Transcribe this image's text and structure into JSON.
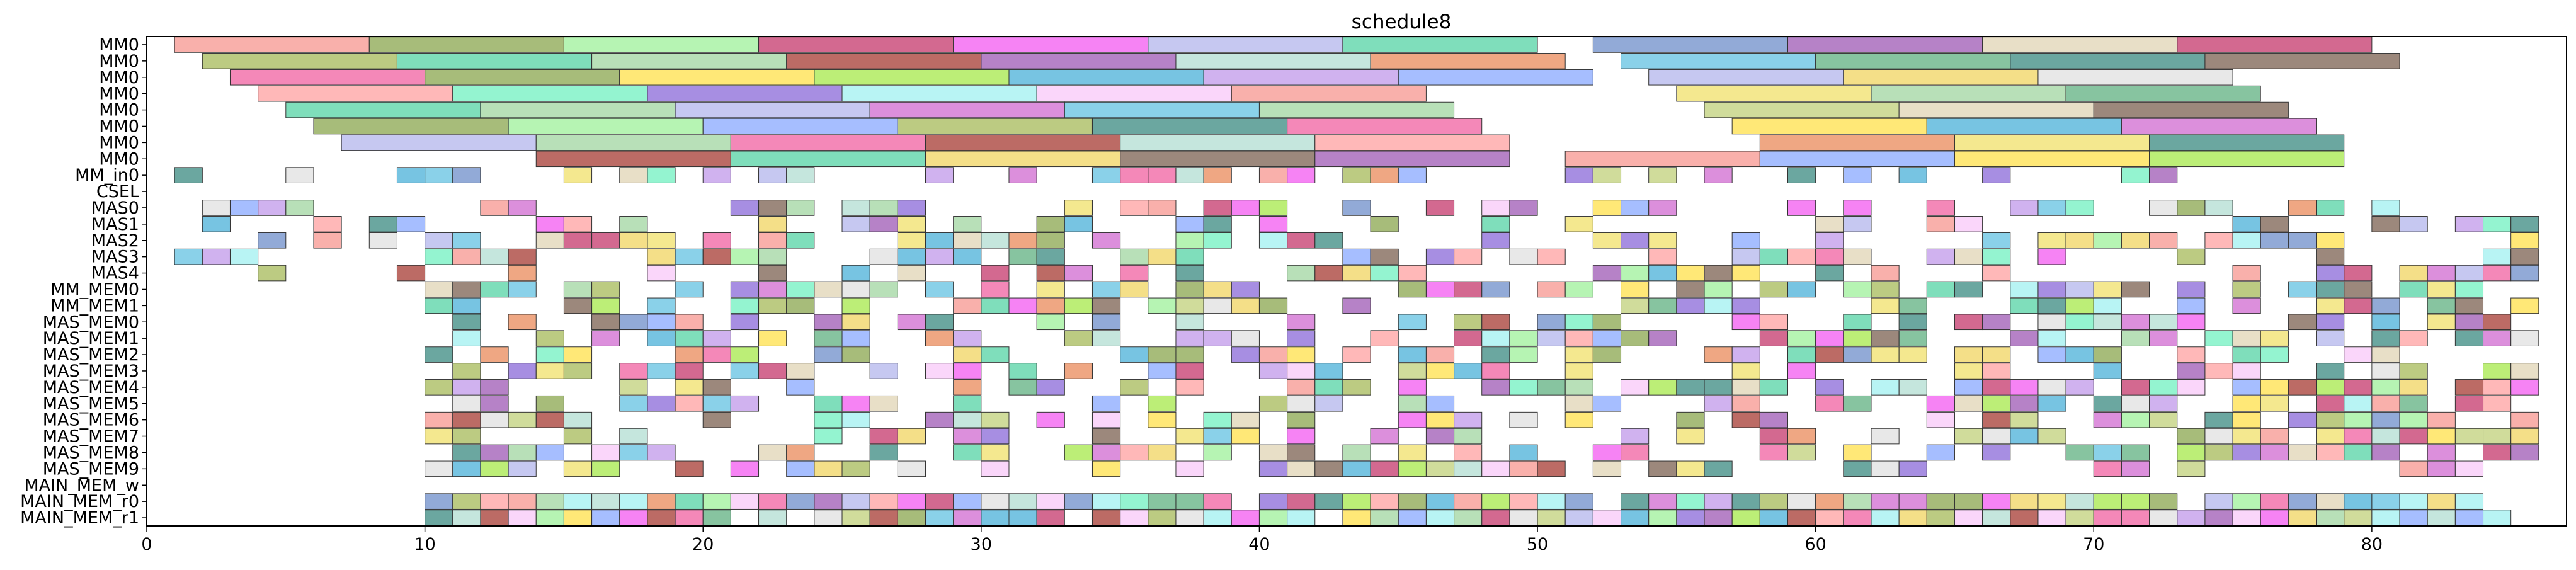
{
  "chart_data": {
    "type": "gantt",
    "title": "schedule8",
    "xlabel": "",
    "ylabel": "",
    "xlim": [
      0,
      87
    ],
    "x_ticks": [
      0,
      10,
      20,
      30,
      40,
      50,
      60,
      70,
      80
    ],
    "grid": false,
    "legend": "none",
    "rows": [
      "MM0",
      "MM0",
      "MM0",
      "MM0",
      "MM0",
      "MM0",
      "MM0",
      "MM0",
      "MM_in0",
      "CSEL",
      "MAS0",
      "MAS1",
      "MAS2",
      "MAS3",
      "MAS4",
      "MM_MEM0",
      "MM_MEM1",
      "MAS_MEM0",
      "MAS_MEM1",
      "MAS_MEM2",
      "MAS_MEM3",
      "MAS_MEM4",
      "MAS_MEM5",
      "MAS_MEM6",
      "MAS_MEM7",
      "MAS_MEM8",
      "MAS_MEM9",
      "MAIN_MEM_w",
      "MAIN_MEM_r0",
      "MAIN_MEM_r1"
    ],
    "palette": [
      "#f7958f",
      "#8aa64e",
      "#9ef09a",
      "#c4376b",
      "#f35af0",
      "#b3b6ec",
      "#54d3a4",
      "#6d8ec9",
      "#9d58b4",
      "#e0d4b4",
      "#a6ba58",
      "#a0d6a0",
      "#a63a31",
      "#b2ded2",
      "#e98a59",
      "#c098ea",
      "#f0e06a",
      "#c0d07a",
      "#d06ad0",
      "#8a68d8",
      "#63c2e2",
      "#5fb080",
      "#3a8a80",
      "#7b6050",
      "#f060a0",
      "#ffe04a",
      "#a6e84a",
      "#4ab0d8",
      "#88a8ff",
      "#f0d460",
      "#e0e0e0",
      "#ffa0a0",
      "#70f0c0",
      "#a0f0f0",
      "#f8c8f8"
    ],
    "bars": [
      [
        0,
        1,
        8,
        0
      ],
      [
        0,
        8,
        15,
        1
      ],
      [
        0,
        15,
        22,
        2
      ],
      [
        0,
        22,
        29,
        3
      ],
      [
        0,
        29,
        36,
        4
      ],
      [
        0,
        36,
        43,
        5
      ],
      [
        0,
        43,
        50,
        6
      ],
      [
        0,
        52,
        59,
        7
      ],
      [
        0,
        59,
        66,
        8
      ],
      [
        0,
        66,
        73,
        9
      ],
      [
        0,
        73,
        80,
        3
      ],
      [
        1,
        2,
        9,
        10
      ],
      [
        1,
        9,
        16,
        6
      ],
      [
        1,
        16,
        23,
        11
      ],
      [
        1,
        23,
        30,
        12
      ],
      [
        1,
        30,
        37,
        8
      ],
      [
        1,
        37,
        44,
        13
      ],
      [
        1,
        44,
        51,
        14
      ],
      [
        1,
        53,
        60,
        20
      ],
      [
        1,
        60,
        67,
        21
      ],
      [
        1,
        67,
        74,
        22
      ],
      [
        1,
        74,
        81,
        23
      ],
      [
        2,
        3,
        10,
        24
      ],
      [
        2,
        10,
        17,
        1
      ],
      [
        2,
        17,
        24,
        25
      ],
      [
        2,
        24,
        31,
        26
      ],
      [
        2,
        31,
        38,
        27
      ],
      [
        2,
        38,
        45,
        15
      ],
      [
        2,
        45,
        52,
        28
      ],
      [
        2,
        54,
        61,
        5
      ],
      [
        2,
        61,
        68,
        29
      ],
      [
        2,
        68,
        75,
        30
      ],
      [
        3,
        4,
        11,
        31
      ],
      [
        3,
        11,
        18,
        32
      ],
      [
        3,
        18,
        25,
        19
      ],
      [
        3,
        25,
        32,
        33
      ],
      [
        3,
        32,
        39,
        34
      ],
      [
        3,
        39,
        46,
        35
      ],
      [
        3,
        55,
        62,
        16
      ],
      [
        3,
        62,
        69,
        11
      ],
      [
        3,
        69,
        76,
        21
      ],
      [
        4,
        5,
        12,
        6
      ],
      [
        4,
        12,
        19,
        11
      ],
      [
        4,
        19,
        26,
        5
      ],
      [
        4,
        26,
        33,
        18
      ],
      [
        4,
        33,
        40,
        20
      ],
      [
        4,
        40,
        47,
        11
      ],
      [
        4,
        56,
        63,
        17
      ],
      [
        4,
        63,
        70,
        9
      ],
      [
        4,
        70,
        77,
        23
      ],
      [
        5,
        6,
        13,
        1
      ],
      [
        5,
        13,
        20,
        2
      ],
      [
        5,
        20,
        27,
        28
      ],
      [
        5,
        27,
        34,
        10
      ],
      [
        5,
        34,
        41,
        22
      ],
      [
        5,
        41,
        48,
        24
      ],
      [
        5,
        57,
        64,
        25
      ],
      [
        5,
        64,
        71,
        27
      ],
      [
        5,
        71,
        78,
        18
      ],
      [
        6,
        7,
        14,
        5
      ],
      [
        6,
        14,
        21,
        11
      ],
      [
        6,
        21,
        28,
        24
      ],
      [
        6,
        28,
        35,
        12
      ],
      [
        6,
        35,
        42,
        13
      ],
      [
        6,
        42,
        49,
        31
      ],
      [
        6,
        58,
        65,
        14
      ],
      [
        6,
        65,
        72,
        16
      ],
      [
        6,
        72,
        79,
        22
      ],
      [
        7,
        14,
        21,
        12
      ],
      [
        7,
        21,
        28,
        6
      ],
      [
        7,
        28,
        35,
        29
      ],
      [
        7,
        35,
        42,
        23
      ],
      [
        7,
        42,
        49,
        8
      ],
      [
        7,
        51,
        58,
        0
      ],
      [
        7,
        58,
        65,
        28
      ],
      [
        7,
        65,
        72,
        25
      ],
      [
        7,
        72,
        79,
        26
      ]
    ]
  }
}
